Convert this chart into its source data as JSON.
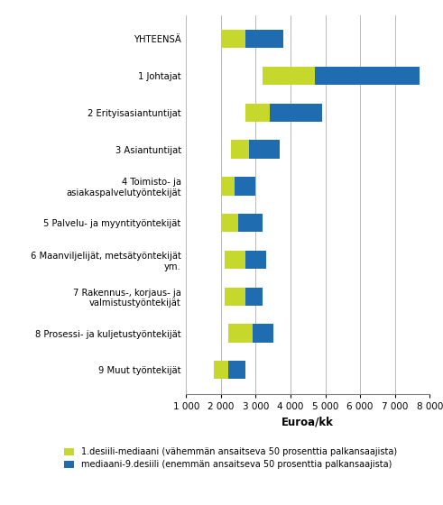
{
  "categories": [
    "YHTEENSÄ",
    "1 Johtajat",
    "2 Erityisasiantuntijat",
    "3 Asiantuntijat",
    "4 Toimisto- ja\nasiakaspalvelutyöntekijät",
    "5 Palvelu- ja myyntityöntekijät",
    "6 Maanviljelijät, metsätyöntekijät\nym.",
    "7 Rakennus-, korjaus- ja\nvalmistustyöntekijät",
    "8 Prosessi- ja kuljetustyöntekijät",
    "9 Muut työntekijät"
  ],
  "d1": [
    2000,
    3200,
    2700,
    2300,
    2000,
    2000,
    2100,
    2100,
    2200,
    1800
  ],
  "median": [
    2700,
    4700,
    3400,
    2800,
    2400,
    2500,
    2700,
    2700,
    2900,
    2200
  ],
  "d9": [
    3800,
    7700,
    4900,
    3700,
    3000,
    3200,
    3300,
    3200,
    3500,
    2700
  ],
  "color_d1_median": "#c7d82c",
  "color_median_d9": "#1f6cb0",
  "xlabel": "Euroa/kk",
  "xlim": [
    1000,
    8000
  ],
  "xticks": [
    1000,
    2000,
    3000,
    4000,
    5000,
    6000,
    7000,
    8000
  ],
  "xtick_labels": [
    "1 000",
    "2 000",
    "3 000",
    "4 000",
    "5 000",
    "6 000",
    "7 000",
    "8 000"
  ],
  "legend_labels": [
    "1.desiili-mediaani (vähemmän ansaitseva 50 prosenttia palkansaajista)",
    "mediaani-9.desiili (enemmän ansaitseva 50 prosenttia palkansaajista)"
  ],
  "background_color": "#ffffff",
  "bar_height": 0.5
}
